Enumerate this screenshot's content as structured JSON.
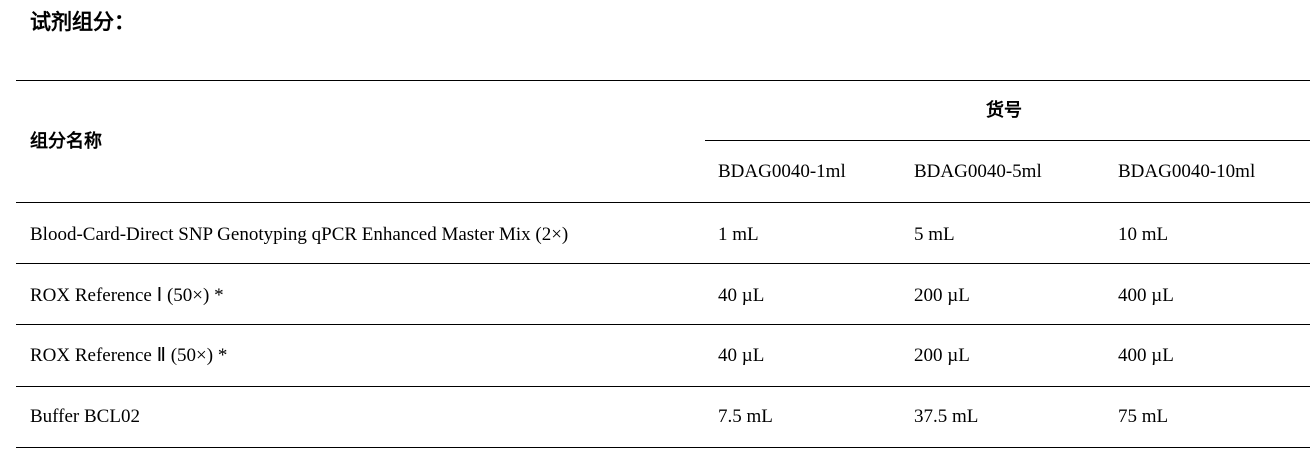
{
  "title": "试剂组分：",
  "table": {
    "component_header": "组分名称",
    "catalog_header": "货号",
    "catalog_numbers": [
      "BDAG0040-1ml",
      "BDAG0040-5ml",
      "BDAG0040-10ml"
    ],
    "rows": [
      {
        "name": "Blood-Card-Direct SNP Genotyping qPCR Enhanced Master Mix (2×)",
        "values": [
          "1 mL",
          "5 mL",
          "10 mL"
        ]
      },
      {
        "name": "ROX Reference Ⅰ (50×) *",
        "values": [
          "40 µL",
          "200 µL",
          "400 µL"
        ]
      },
      {
        "name": "ROX Reference Ⅱ (50×) *",
        "values": [
          "40 µL",
          "200 µL",
          "400 µL"
        ]
      },
      {
        "name": "Buffer BCL02",
        "values": [
          "7.5 mL",
          "37.5 mL",
          "75 mL"
        ]
      }
    ]
  }
}
